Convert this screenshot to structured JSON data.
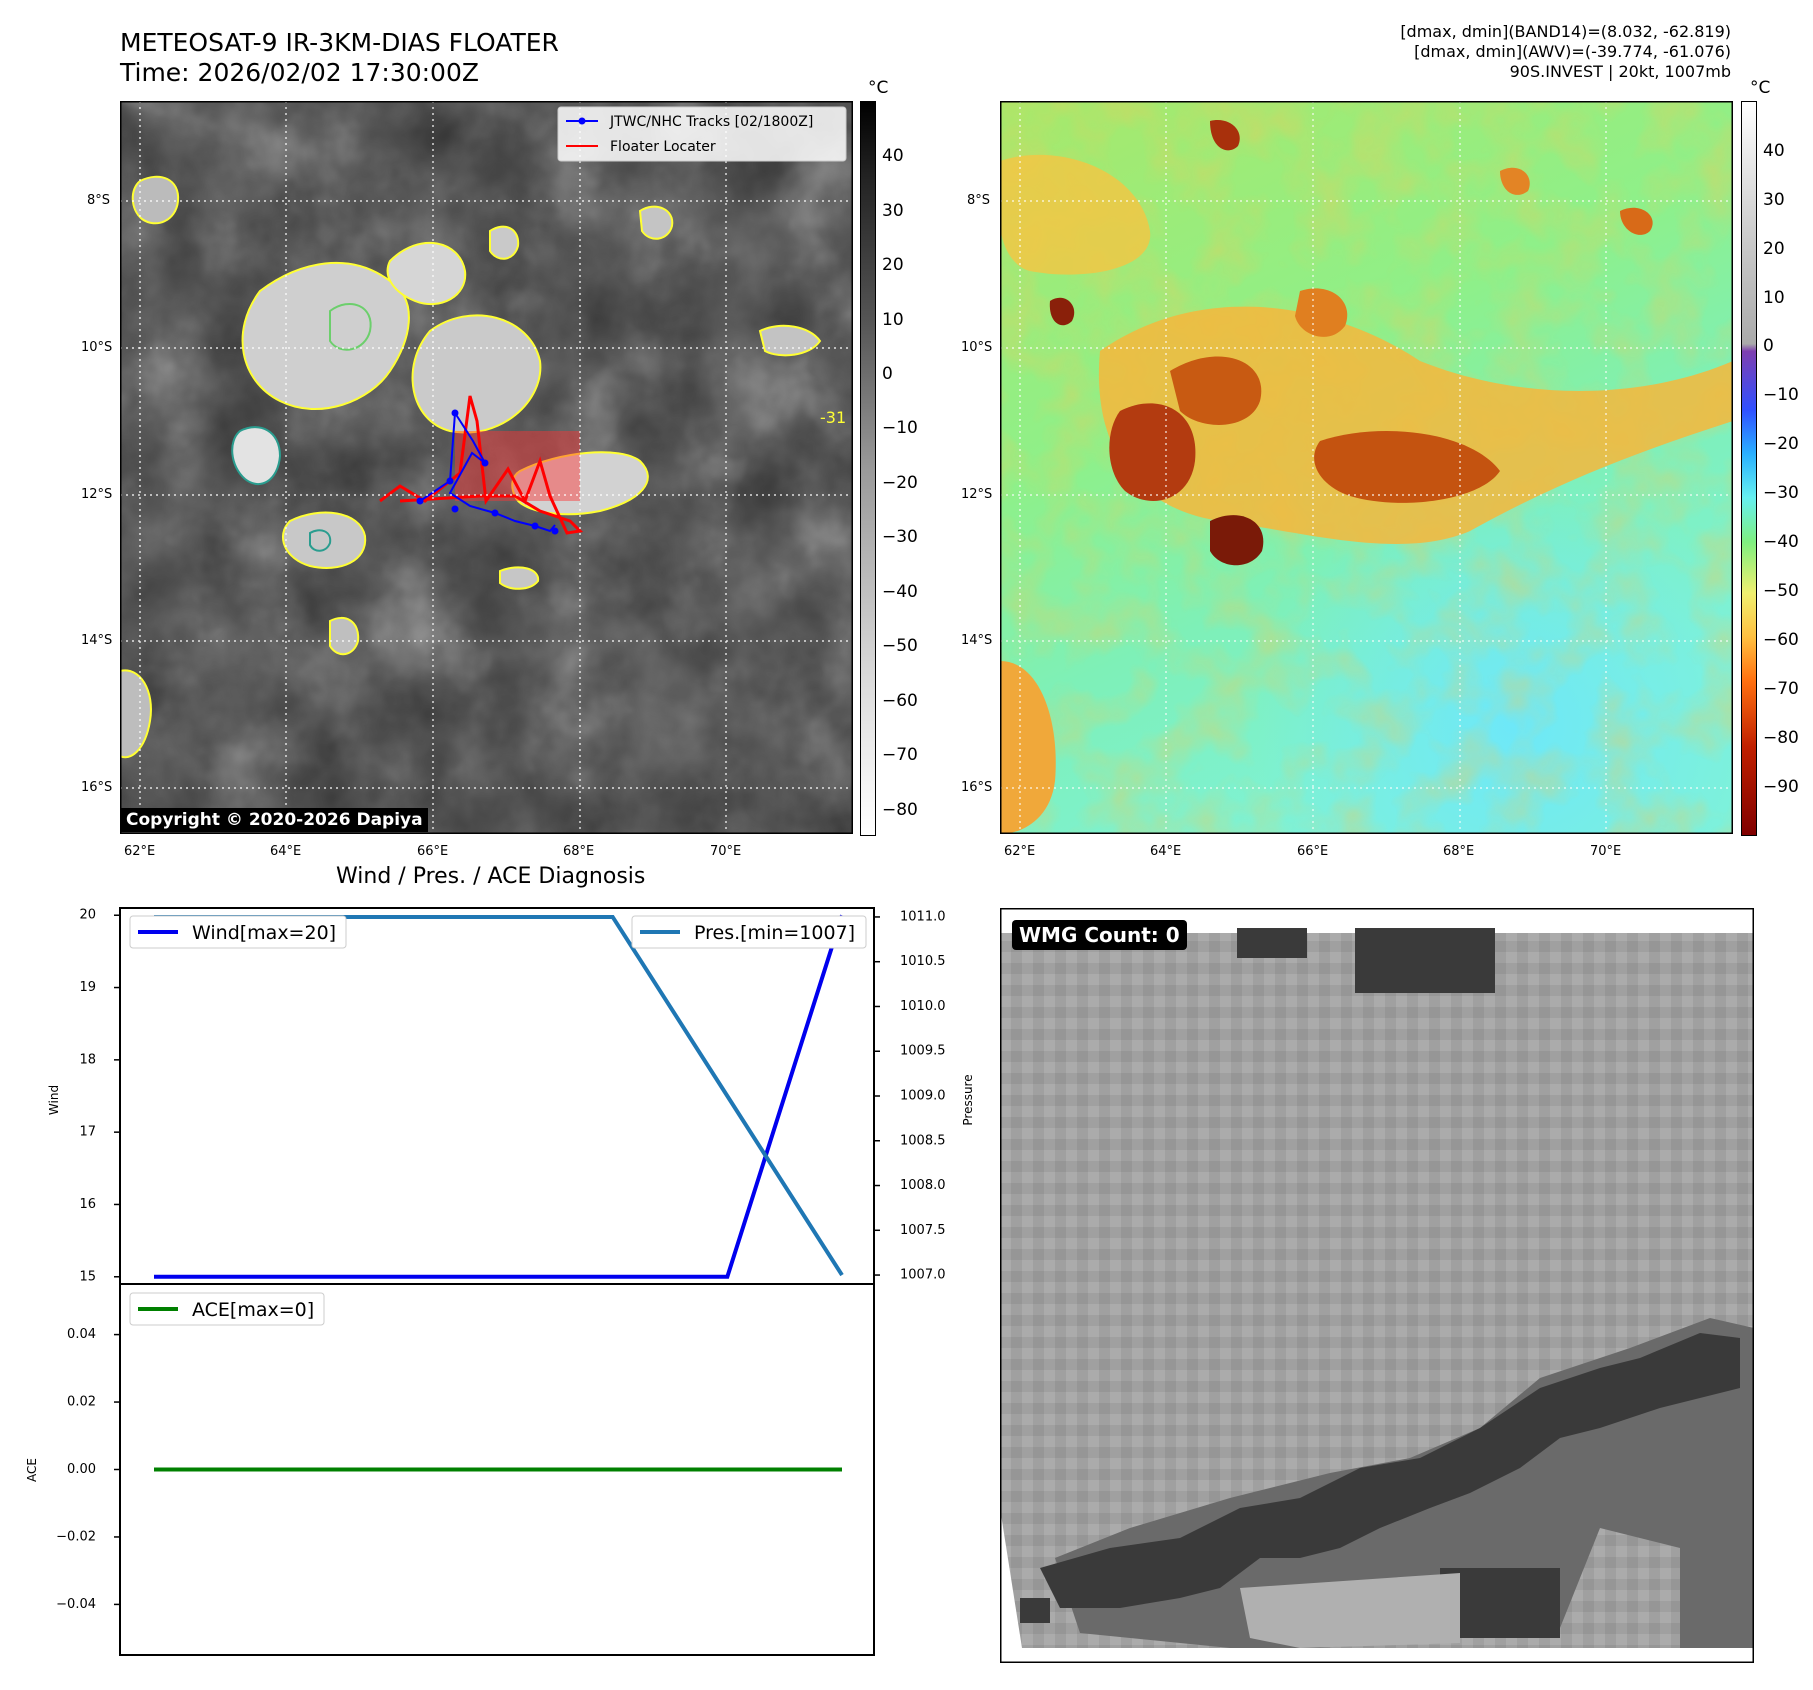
{
  "header": {
    "title_line1": "METEOSAT-9 IR-3KM-DIAS FLOATER",
    "title_line2": "Time: 2026/02/02 17:30:00Z",
    "stats_line1": "[dmax, dmin](BAND14)=(8.032, -62.819)",
    "stats_line2": "[dmax, dmin](AWV)=(-39.774, -61.076)",
    "stats_line3": "90S.INVEST | 20kt, 1007mb"
  },
  "ir_panel": {
    "lon_ticks": [
      "62°E",
      "64°E",
      "66°E",
      "68°E",
      "70°E"
    ],
    "lat_ticks": [
      "8°S",
      "10°S",
      "12°S",
      "14°S",
      "16°S"
    ],
    "legend": [
      "JTWC/NHC Tracks [02/1800Z]",
      "Floater Locater"
    ],
    "contour_label": "-31",
    "copyright": "Copyright © 2020-2026 Dapiya",
    "colorbar_unit": "°C",
    "colorbar_ticks": [
      "40",
      "30",
      "20",
      "10",
      "0",
      "−10",
      "−20",
      "−30",
      "−40",
      "−50",
      "−60",
      "−70",
      "−80"
    ]
  },
  "wv_panel": {
    "lon_ticks": [
      "62°E",
      "64°E",
      "66°E",
      "68°E",
      "70°E"
    ],
    "lat_ticks": [
      "8°S",
      "10°S",
      "12°S",
      "14°S",
      "16°S"
    ],
    "colorbar_unit": "°C",
    "colorbar_ticks": [
      "40",
      "30",
      "20",
      "10",
      "0",
      "−10",
      "−20",
      "−30",
      "−40",
      "−50",
      "−60",
      "−70",
      "−80",
      "−90"
    ]
  },
  "diagnosis": {
    "title": "Wind / Pres. / ACE Diagnosis",
    "wind_axis_label": "Wind",
    "pressure_axis_label": "Pressure",
    "ace_axis_label": "ACE",
    "wind_ticks": [
      "20",
      "19",
      "18",
      "17",
      "16",
      "15"
    ],
    "pressure_ticks": [
      "1011.0",
      "1010.5",
      "1010.0",
      "1009.5",
      "1009.0",
      "1008.5",
      "1008.0",
      "1007.5",
      "1007.0"
    ],
    "ace_ticks": [
      "0.04",
      "0.02",
      "0.00",
      "−0.02",
      "−0.04"
    ],
    "wind_legend": "Wind[max=20]",
    "pressure_legend": "Pres.[min=1007]",
    "ace_legend": "ACE[max=0]"
  },
  "wmg_panel": {
    "badge": "WMG Count: 0"
  },
  "colors": {
    "wind": "#0000ee",
    "pressure": "#1f77b4",
    "ace": "#008000",
    "track": "#0000ff",
    "floater": "#ff0000"
  },
  "chart_data": [
    {
      "type": "line",
      "title": "Wind / Pres. / ACE Diagnosis",
      "series": [
        {
          "name": "Wind[max=20]",
          "axis": "Wind",
          "x": [
            0,
            1,
            2,
            3,
            4,
            5,
            6
          ],
          "values": [
            15,
            15,
            15,
            15,
            15,
            15,
            20
          ]
        },
        {
          "name": "Pres.[min=1007]",
          "axis": "Pressure",
          "x": [
            0,
            1,
            2,
            3,
            4,
            5,
            6
          ],
          "values": [
            1011,
            1011,
            1011,
            1011,
            1011,
            1009,
            1007
          ]
        }
      ],
      "ylim_wind": [
        14.9,
        20.1
      ],
      "ylim_pressure": [
        1006.9,
        1011.1
      ]
    },
    {
      "type": "line",
      "series": [
        {
          "name": "ACE[max=0]",
          "x": [
            0,
            1,
            2,
            3,
            4,
            5,
            6
          ],
          "values": [
            0,
            0,
            0,
            0,
            0,
            0,
            0
          ]
        }
      ],
      "ylim": [
        -0.055,
        0.055
      ]
    }
  ]
}
